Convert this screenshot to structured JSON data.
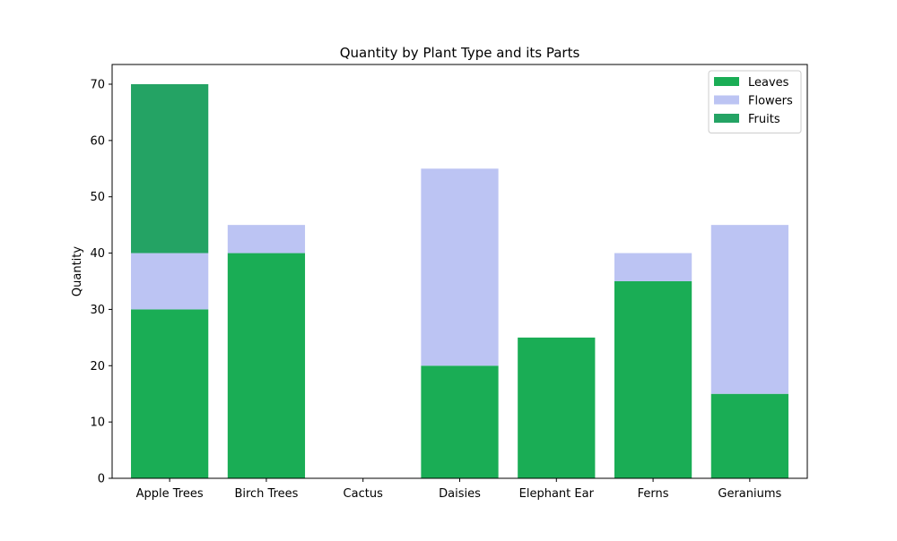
{
  "chart_data": {
    "type": "bar",
    "stacked": true,
    "title": "Quantity by Plant Type and its Parts",
    "xlabel": "",
    "ylabel": "Quantity",
    "categories": [
      "Apple Trees",
      "Birch Trees",
      "Cactus",
      "Daisies",
      "Elephant Ear",
      "Ferns",
      "Geraniums"
    ],
    "series": [
      {
        "name": "Leaves",
        "color": "#1aad55",
        "values": [
          30,
          40,
          0,
          20,
          25,
          35,
          15
        ]
      },
      {
        "name": "Flowers",
        "color": "#bcc4f3",
        "values": [
          10,
          5,
          0,
          35,
          0,
          5,
          30
        ]
      },
      {
        "name": "Fruits",
        "color": "#24a364",
        "values": [
          30,
          0,
          0,
          0,
          0,
          0,
          0
        ]
      }
    ],
    "ylim": [
      0,
      73.5
    ],
    "yticks": [
      0,
      10,
      20,
      30,
      40,
      50,
      60,
      70
    ],
    "grid": false,
    "legend_position": "top-right"
  }
}
